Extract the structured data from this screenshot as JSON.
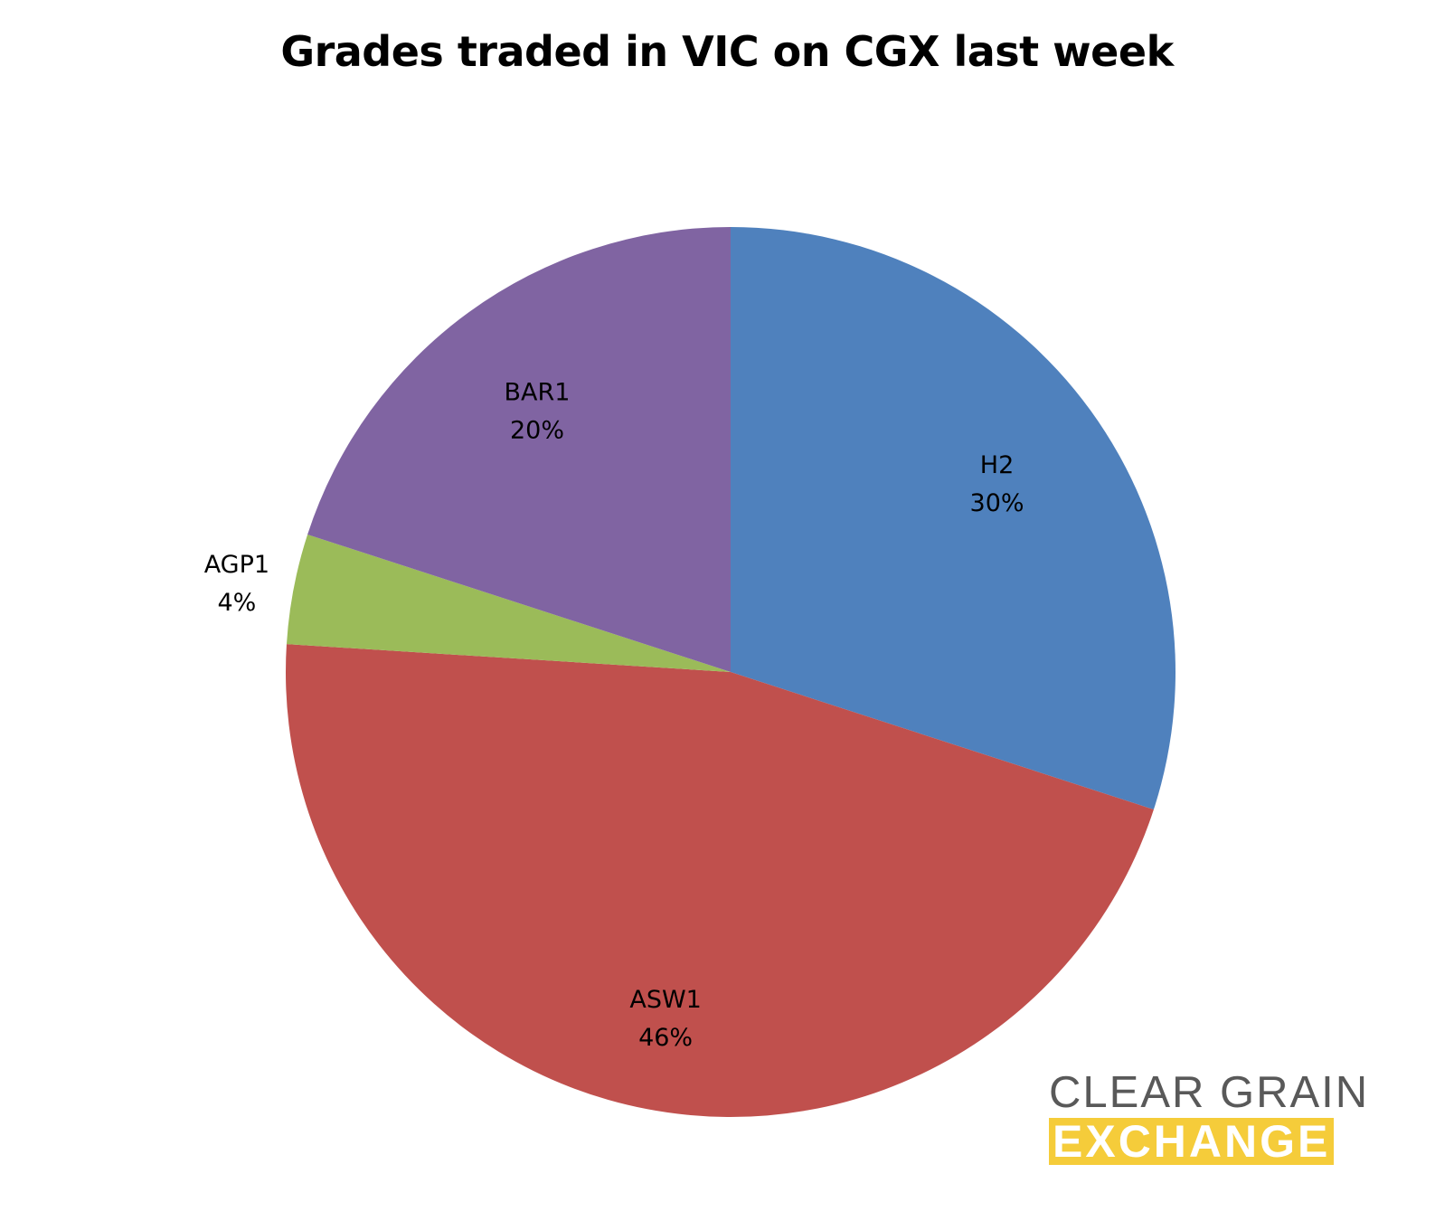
{
  "chart_data": {
    "type": "pie",
    "title": "Grades traded in VIC on CGX last week",
    "slices": [
      {
        "label": "H2",
        "value": 30,
        "value_label": "30%",
        "color": "#4f81bd"
      },
      {
        "label": "ASW1",
        "value": 46,
        "value_label": "46%",
        "color": "#c0504d"
      },
      {
        "label": "AGP1",
        "value": 4,
        "value_label": "4%",
        "color": "#9bbb59"
      },
      {
        "label": "BAR1",
        "value": 20,
        "value_label": "20%",
        "color": "#8064a2"
      }
    ],
    "start_angle_deg": 0,
    "direction": "clockwise"
  },
  "logo": {
    "line1": "CLEAR GRAIN",
    "line2": "EXCHANGE",
    "text_color": "#595959",
    "accent_color": "#f5cc3a"
  }
}
